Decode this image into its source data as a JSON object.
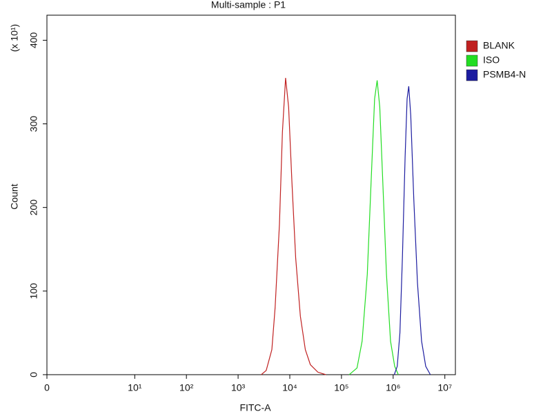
{
  "chart_data": {
    "type": "line",
    "title": "Multi-sample : P1",
    "x_label": "FITC-A",
    "y_label": "Count",
    "y_multiplier_label": "(x 10¹)",
    "xscale": "biexponential",
    "xlim": [
      0,
      16000000
    ],
    "ylim": [
      0,
      430
    ],
    "xticks": [
      0,
      {
        "value": 10,
        "label": "10¹"
      },
      {
        "value": 100,
        "label": "10²"
      },
      {
        "value": 1000,
        "label": "10³"
      },
      {
        "value": 10000,
        "label": "10⁴"
      },
      {
        "value": 100000,
        "label": "10⁵"
      },
      {
        "value": 1000000,
        "label": "10⁶"
      },
      {
        "value": 10000000,
        "label": "10⁷"
      }
    ],
    "yticks": [
      0,
      100,
      200,
      300,
      400
    ],
    "series": [
      {
        "name": "BLANK",
        "color": "#c02020",
        "x": [
          2800,
          3500,
          4500,
          5200,
          6300,
          7200,
          8300,
          9500,
          11000,
          13000,
          16000,
          20000,
          25000,
          35000,
          50000
        ],
        "values": [
          0,
          5,
          30,
          80,
          180,
          290,
          355,
          320,
          230,
          140,
          70,
          30,
          12,
          3,
          0
        ]
      },
      {
        "name": "ISO",
        "color": "#22dd22",
        "x": [
          141000,
          200000,
          251000,
          316000,
          380000,
          437000,
          490000,
          550000,
          631000,
          741000,
          891000,
          1070000,
          1260000
        ],
        "values": [
          0,
          8,
          40,
          120,
          240,
          330,
          352,
          320,
          230,
          120,
          40,
          10,
          0
        ]
      },
      {
        "name": "PSMB4-N",
        "color": "#1c1ca0",
        "x": [
          1050000,
          1200000,
          1350000,
          1510000,
          1700000,
          1860000,
          2000000,
          2190000,
          2510000,
          2950000,
          3550000,
          4270000,
          5250000
        ],
        "values": [
          0,
          10,
          50,
          140,
          260,
          330,
          345,
          310,
          210,
          110,
          40,
          10,
          0
        ]
      }
    ]
  }
}
